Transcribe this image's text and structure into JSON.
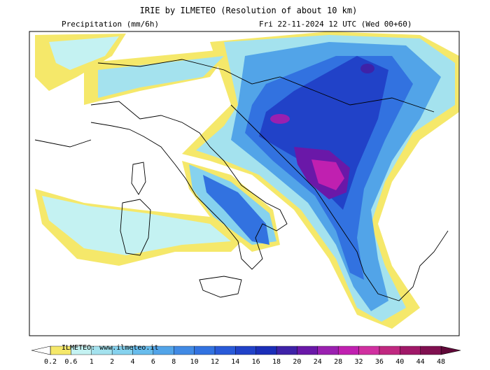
{
  "header": {
    "title": "IRIE by ILMETEO (Resolution of about 10 km)",
    "variable": "Precipitation (mm/6h)",
    "valid_time": "Fri 22-11-2024 12 UTC (Wed 00+60)"
  },
  "legend": {
    "watermark": "ILMETEO: www.ilmeteo.it",
    "ticks": [
      0.2,
      0.6,
      1,
      2,
      4,
      6,
      8,
      10,
      12,
      14,
      16,
      18,
      20,
      24,
      28,
      32,
      36,
      40,
      44,
      48
    ],
    "colors": [
      "#ffffff",
      "#f5e86a",
      "#c4f2f2",
      "#a4e2ee",
      "#86d2ee",
      "#68bcec",
      "#52a4e8",
      "#418ae4",
      "#3272e0",
      "#295ad8",
      "#2142c8",
      "#1b2eb8",
      "#3e22a8",
      "#6a18a8",
      "#9a20b0",
      "#c020b0",
      "#d030a0",
      "#c02880",
      "#a01868",
      "#801050",
      "#600838"
    ]
  }
}
